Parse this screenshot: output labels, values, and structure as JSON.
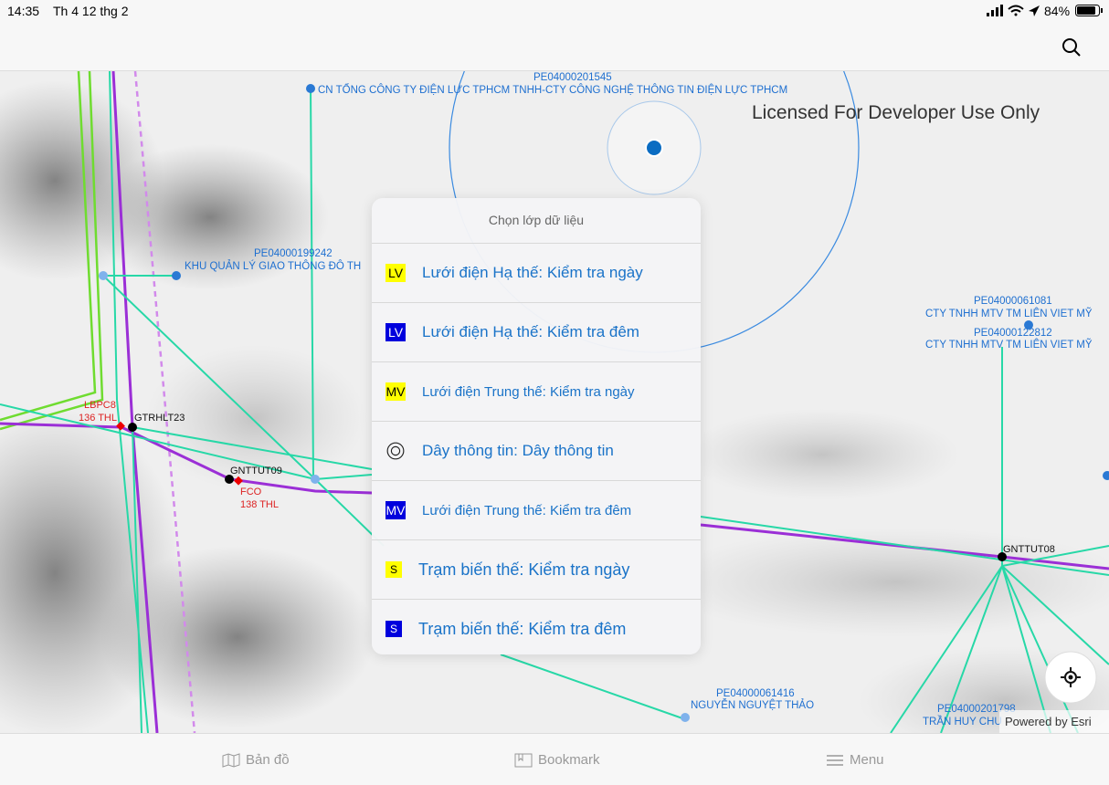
{
  "status_bar": {
    "time": "14:35",
    "date": "Th 4 12 thg 2",
    "battery": "84%"
  },
  "map": {
    "license": "Licensed For Developer Use Only",
    "attribution": "Powered by Esri",
    "labels": [
      {
        "code": "PE04000201545",
        "name": "CN TỔNG CÔNG TY ĐIỆN LỰC TPHCM TNHH-CTY CÔNG NGHỆ THÔNG TIN ĐIỆN LỰC TPHCM"
      },
      {
        "code": "PE04000199242",
        "name": "KHU QUẢN LÝ GIAO THÔNG ĐÔ TH"
      },
      {
        "code": "PE04000061081",
        "name": "CTY TNHH MTV TM LIÊN VIET MỸ"
      },
      {
        "code": "PE04000122812",
        "name": "CTY TNHH MTV TM LIÊN VIET MỸ"
      },
      {
        "code": "PE04000061416",
        "name": "NGUYỄN NGUYỆT THẢO"
      },
      {
        "code": "PE04000201798",
        "name": "TRẦN HUY CHU"
      }
    ],
    "nodes": [
      "GTRHLT23",
      "GNTTUT09",
      "GNTTUT08"
    ],
    "red_labels": [
      {
        "name": "LBPC8",
        "line": "136 THL"
      },
      {
        "name": "FCO",
        "line": "138 THL"
      }
    ]
  },
  "popover": {
    "title": "Chọn lớp dữ liệu",
    "items": [
      {
        "icon": "LV",
        "label": "Lưới điện Hạ thế: Kiểm tra ngày"
      },
      {
        "icon": "LV",
        "label": "Lưới điện Hạ thế: Kiểm tra đêm"
      },
      {
        "icon": "MV",
        "label": "Lưới điện Trung thế: Kiểm tra ngày"
      },
      {
        "label": "Dây thông tin: Dây thông tin"
      },
      {
        "icon": "MV",
        "label": "Lưới điện Trung thế: Kiểm tra đêm"
      },
      {
        "icon": "S",
        "label": "Trạm biến thế: Kiểm tra ngày"
      },
      {
        "icon": "S",
        "label": "Trạm biến thế: Kiểm tra đêm"
      }
    ]
  },
  "tab_bar": [
    "Bản đồ",
    "Bookmark",
    "Menu"
  ]
}
